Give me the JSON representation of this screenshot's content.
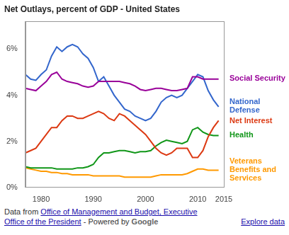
{
  "chart_data": {
    "type": "line",
    "title": "Net Outlays, percent of GDP - United States",
    "x": [
      1977,
      1978,
      1979,
      1980,
      1981,
      1982,
      1983,
      1984,
      1985,
      1986,
      1987,
      1988,
      1989,
      1990,
      1991,
      1992,
      1993,
      1994,
      1995,
      1996,
      1997,
      1998,
      1999,
      2000,
      2001,
      2002,
      2003,
      2004,
      2005,
      2006,
      2007,
      2008,
      2009,
      2010,
      2011,
      2012,
      2013,
      2014
    ],
    "xlim": [
      1977,
      2015
    ],
    "xticks": [
      1980,
      1990,
      2000,
      2010,
      2015
    ],
    "ylim": [
      0,
      7.2
    ],
    "yticks": [
      {
        "value": 0,
        "label": "0%"
      },
      {
        "value": 2,
        "label": "2%"
      },
      {
        "value": 4,
        "label": "4%"
      },
      {
        "value": 6,
        "label": "6%"
      }
    ],
    "grid": false,
    "series": [
      {
        "name": "Social Security",
        "color": "#990099",
        "values": [
          4.3,
          4.25,
          4.2,
          4.4,
          4.6,
          4.9,
          5.0,
          4.7,
          4.6,
          4.55,
          4.5,
          4.4,
          4.35,
          4.4,
          4.6,
          4.6,
          4.6,
          4.6,
          4.6,
          4.55,
          4.5,
          4.4,
          4.25,
          4.2,
          4.25,
          4.3,
          4.3,
          4.25,
          4.2,
          4.2,
          4.25,
          4.3,
          4.8,
          4.8,
          4.7,
          4.7,
          4.7,
          4.7
        ]
      },
      {
        "name": "National Defense",
        "color": "#3366cc",
        "values": [
          4.9,
          4.7,
          4.65,
          4.9,
          5.1,
          5.7,
          6.1,
          5.9,
          6.1,
          6.2,
          6.1,
          5.8,
          5.6,
          5.2,
          4.6,
          4.8,
          4.4,
          4.0,
          3.7,
          3.4,
          3.3,
          3.1,
          3.0,
          2.9,
          3.0,
          3.3,
          3.7,
          3.9,
          4.0,
          3.9,
          4.0,
          4.3,
          4.6,
          4.9,
          4.8,
          4.2,
          3.8,
          3.5
        ]
      },
      {
        "name": "Net Interest",
        "color": "#dc3912",
        "values": [
          1.5,
          1.6,
          1.7,
          2.0,
          2.3,
          2.6,
          2.6,
          2.9,
          3.1,
          3.1,
          3.0,
          3.0,
          3.1,
          3.2,
          3.3,
          3.2,
          3.0,
          2.9,
          3.2,
          3.1,
          2.9,
          2.7,
          2.5,
          2.3,
          2.0,
          1.7,
          1.5,
          1.4,
          1.5,
          1.7,
          1.7,
          1.7,
          1.3,
          1.3,
          1.6,
          2.2,
          2.6,
          2.9
        ]
      },
      {
        "name": "Health",
        "color": "#109618",
        "values": [
          0.9,
          0.85,
          0.85,
          0.85,
          0.85,
          0.85,
          0.8,
          0.8,
          0.8,
          0.8,
          0.85,
          0.85,
          0.9,
          1.0,
          1.3,
          1.5,
          1.5,
          1.55,
          1.6,
          1.6,
          1.55,
          1.5,
          1.55,
          1.55,
          1.6,
          1.8,
          1.95,
          2.05,
          2.0,
          1.95,
          1.9,
          2.0,
          2.5,
          2.6,
          2.4,
          2.3,
          2.25,
          2.25
        ]
      },
      {
        "name": "Veterans Benefits and Services",
        "color": "#ff9900",
        "values": [
          0.85,
          0.8,
          0.75,
          0.7,
          0.7,
          0.65,
          0.65,
          0.6,
          0.6,
          0.55,
          0.55,
          0.55,
          0.55,
          0.5,
          0.5,
          0.5,
          0.5,
          0.5,
          0.5,
          0.45,
          0.45,
          0.45,
          0.45,
          0.45,
          0.45,
          0.5,
          0.55,
          0.55,
          0.55,
          0.55,
          0.55,
          0.6,
          0.7,
          0.8,
          0.8,
          0.75,
          0.75,
          0.75
        ]
      }
    ]
  },
  "footer": {
    "source_prefix": "Data from",
    "source": "Office of Management and Budget, Executive Office of the President",
    "separator": "-",
    "powered_by": "Powered by",
    "brand": "Google",
    "link": "Explore data"
  }
}
